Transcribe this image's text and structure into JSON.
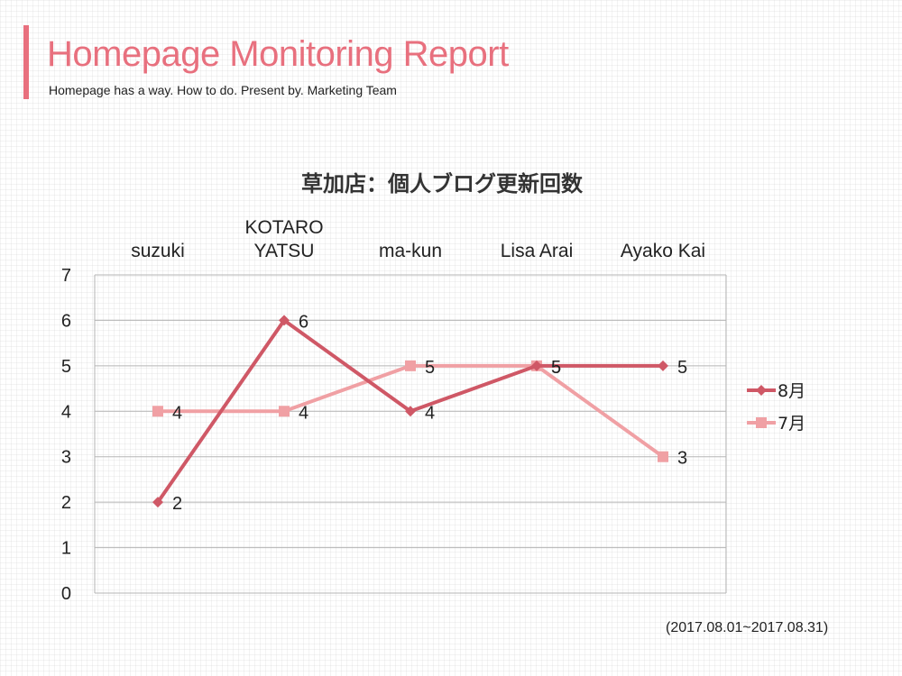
{
  "header": {
    "title": "Homepage Monitoring Report",
    "subtitle": "Homepage has a way. How to do. Present by. Marketing Team",
    "accent_color": "#e8707e"
  },
  "period_note": "(2017.08.01~2017.08.31)",
  "chart_data": {
    "type": "line",
    "title": "草加店：個人ブログ更新回数",
    "categories": [
      "suzuki",
      "KOTARO\nYATSU",
      "ma-kun",
      "Lisa Arai",
      "Ayako Kai"
    ],
    "ylim": [
      0,
      7
    ],
    "yticks": [
      0,
      1,
      2,
      3,
      4,
      5,
      6,
      7
    ],
    "grid": true,
    "legend_position": "right",
    "series": [
      {
        "name": "8月",
        "values": [
          2,
          6,
          4,
          5,
          5
        ],
        "color": "#cf5866",
        "marker": "diamond"
      },
      {
        "name": "7月",
        "values": [
          4,
          4,
          5,
          5,
          3
        ],
        "color": "#f0a0a4",
        "marker": "square"
      }
    ]
  }
}
